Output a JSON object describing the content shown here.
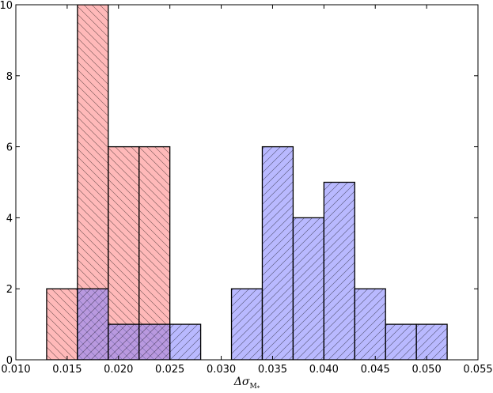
{
  "chart_data": {
    "type": "bar",
    "title": "",
    "xlabel": "Δσ",
    "xlabel_subscript": "M",
    "xlabel_subscript_sup": "*",
    "ylabel": "",
    "xlim": [
      0.01,
      0.055
    ],
    "ylim": [
      0,
      10
    ],
    "xticks": [
      0.01,
      0.015,
      0.02,
      0.025,
      0.03,
      0.035,
      0.04,
      0.045,
      0.05,
      0.055
    ],
    "xtick_labels": [
      "0.010",
      "0.015",
      "0.020",
      "0.025",
      "0.030",
      "0.035",
      "0.040",
      "0.045",
      "0.050",
      "0.055"
    ],
    "yticks": [
      0,
      2,
      4,
      6,
      8,
      10
    ],
    "ytick_labels": [
      "0",
      "2",
      "4",
      "6",
      "8",
      "10"
    ],
    "grid": false,
    "series": [
      {
        "hatch": "backslash",
        "color": "#ff8080",
        "alpha": 0.55,
        "bins": [
          {
            "x0": 0.013,
            "x1": 0.016,
            "count": 2
          },
          {
            "x0": 0.016,
            "x1": 0.019,
            "count": 10
          },
          {
            "x0": 0.019,
            "x1": 0.022,
            "count": 6
          },
          {
            "x0": 0.022,
            "x1": 0.025,
            "count": 6
          }
        ]
      },
      {
        "hatch": "slash",
        "color": "#8080ff",
        "alpha": 0.55,
        "bins": [
          {
            "x0": 0.016,
            "x1": 0.019,
            "count": 2
          },
          {
            "x0": 0.019,
            "x1": 0.022,
            "count": 1
          },
          {
            "x0": 0.022,
            "x1": 0.025,
            "count": 1
          },
          {
            "x0": 0.025,
            "x1": 0.028,
            "count": 1
          },
          {
            "x0": 0.031,
            "x1": 0.034,
            "count": 2
          },
          {
            "x0": 0.034,
            "x1": 0.037,
            "count": 6
          },
          {
            "x0": 0.037,
            "x1": 0.04,
            "count": 4
          },
          {
            "x0": 0.04,
            "x1": 0.043,
            "count": 5
          },
          {
            "x0": 0.043,
            "x1": 0.046,
            "count": 2
          },
          {
            "x0": 0.046,
            "x1": 0.049,
            "count": 1
          },
          {
            "x0": 0.049,
            "x1": 0.052,
            "count": 1
          }
        ]
      }
    ]
  }
}
